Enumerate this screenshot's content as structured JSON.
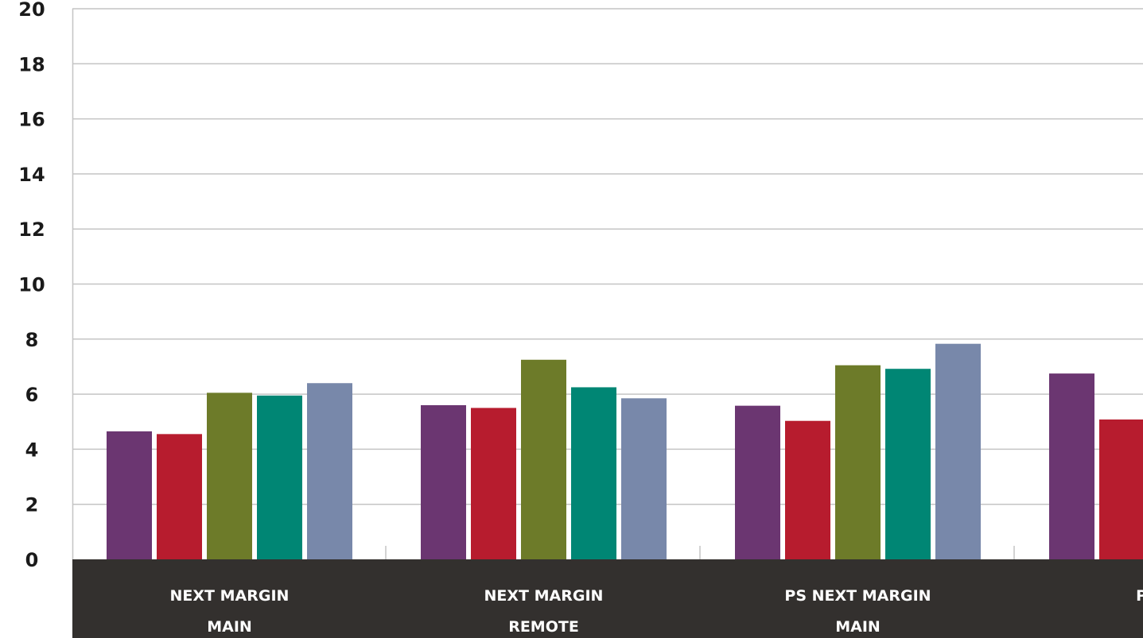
{
  "chart_data": {
    "type": "bar",
    "title": "",
    "xlabel": "",
    "ylabel": "",
    "ylim": [
      0,
      20
    ],
    "yticks": [
      0,
      2,
      4,
      6,
      8,
      10,
      12,
      14,
      16,
      18,
      20
    ],
    "grid": true,
    "categories": [
      [
        "NEXT MARGIN",
        "MAIN"
      ],
      [
        "NEXT MARGIN",
        "REMOTE"
      ],
      [
        "PS NEXT MARGIN",
        "MAIN"
      ],
      [
        "PS NEXT",
        ""
      ]
    ],
    "series": [
      {
        "color": "#6b3671",
        "values": [
          4.65,
          5.6,
          5.58,
          6.75
        ]
      },
      {
        "color": "#b71c2e",
        "values": [
          4.55,
          5.5,
          5.03,
          5.08
        ]
      },
      {
        "color": "#6d7b29",
        "values": [
          6.05,
          7.25,
          7.05,
          null
        ]
      },
      {
        "color": "#008674",
        "values": [
          5.95,
          6.25,
          6.92,
          null
        ]
      },
      {
        "color": "#7888aa",
        "values": [
          6.4,
          5.85,
          7.83,
          null
        ]
      }
    ],
    "colors": {
      "grid": "#c4c4c4",
      "axis_band": "#33302e",
      "label_text": "#ffffff",
      "tick_text": "#1a1a1a"
    }
  }
}
